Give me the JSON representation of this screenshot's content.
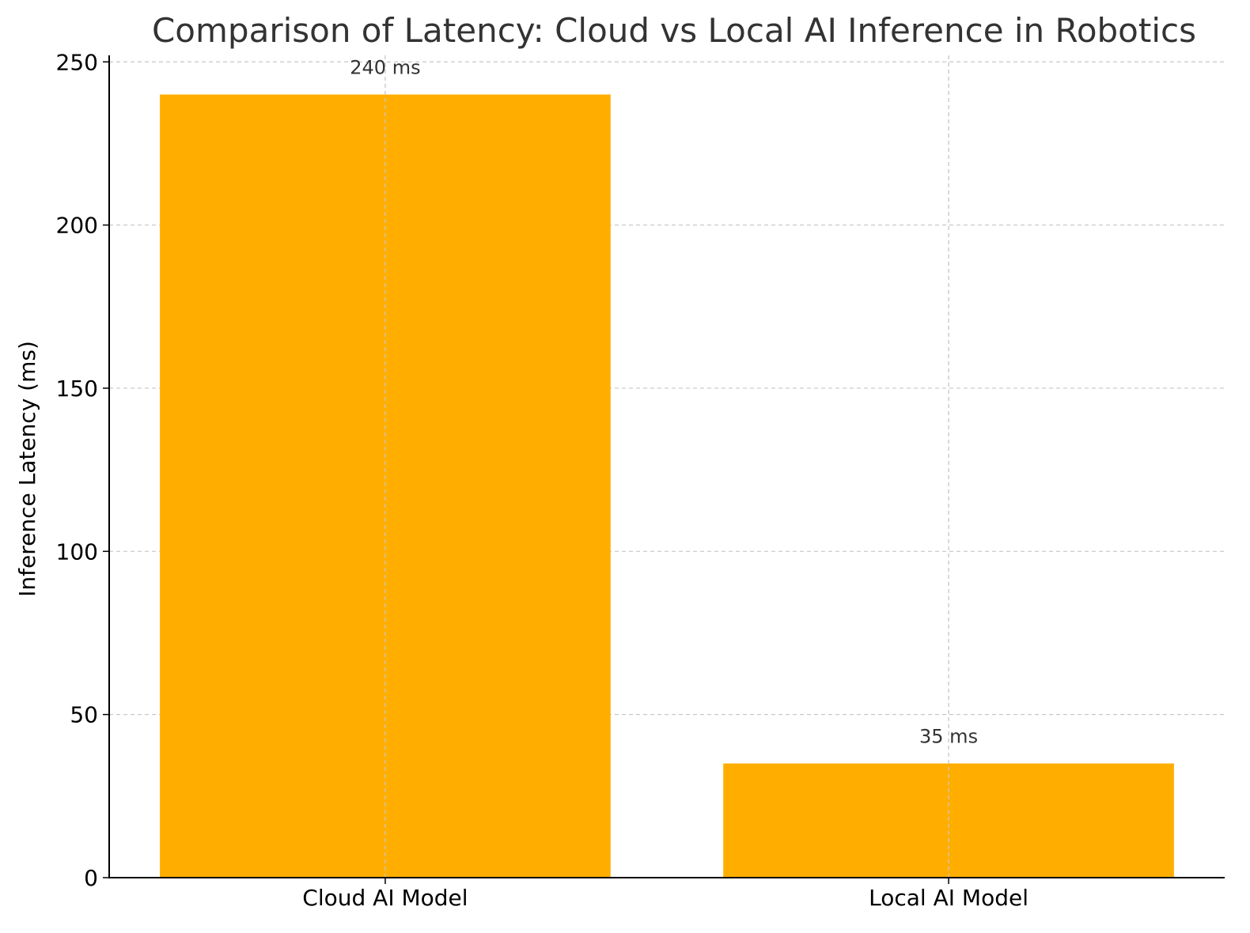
{
  "chart_data": {
    "type": "bar",
    "title": "Comparison of Latency: Cloud vs Local AI Inference in Robotics",
    "xlabel": "",
    "ylabel": "Inference Latency (ms)",
    "categories": [
      "Cloud AI Model",
      "Local AI Model"
    ],
    "values": [
      240,
      35
    ],
    "data_labels": [
      "240 ms",
      "35 ms"
    ],
    "ylim": [
      0,
      252
    ],
    "yticks": [
      0,
      50,
      100,
      150,
      200,
      250
    ],
    "ytick_labels": [
      "0",
      "50",
      "100",
      "150",
      "200",
      "250"
    ],
    "grid": true,
    "bar_color": "#FFAE00",
    "axis_color": "#000000",
    "text_color": "#333333",
    "grid_color": "#c8c8c8"
  }
}
